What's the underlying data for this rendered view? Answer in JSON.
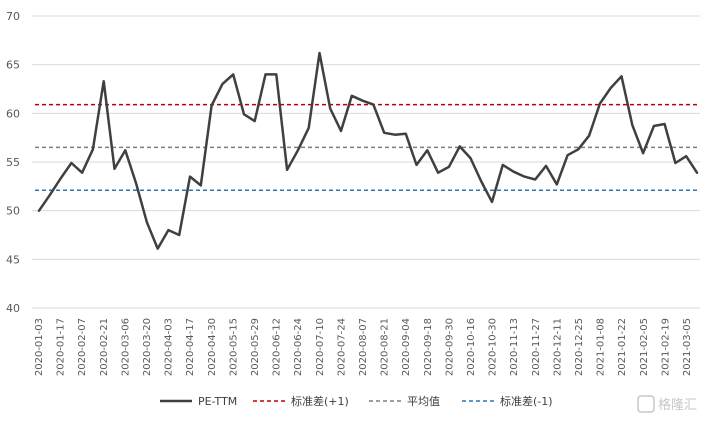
{
  "chart_data": {
    "type": "line",
    "title": "",
    "xlabel": "",
    "ylabel": "",
    "ylim": [
      40,
      70
    ],
    "yticks": [
      40,
      45,
      50,
      55,
      60,
      65,
      70
    ],
    "grid": "horizontal",
    "legend_position": "bottom",
    "x_tick_labels": [
      "2020-01-03",
      "2020-01-17",
      "2020-02-07",
      "2020-02-21",
      "2020-03-06",
      "2020-03-20",
      "2020-04-03",
      "2020-04-17",
      "2020-04-30",
      "2020-05-15",
      "2020-05-29",
      "2020-06-12",
      "2020-06-24",
      "2020-07-10",
      "2020-07-24",
      "2020-08-07",
      "2020-08-21",
      "2020-09-04",
      "2020-09-18",
      "2020-09-30",
      "2020-10-16",
      "2020-10-30",
      "2020-11-13",
      "2020-11-27",
      "2020-12-11",
      "2020-12-25",
      "2021-01-08",
      "2021-01-22",
      "2021-02-05",
      "2021-02-19",
      "2021-03-05"
    ],
    "series": [
      {
        "name": "PE-TTM",
        "style": "solid",
        "color": "#404040",
        "values": [
          50.0,
          51.6,
          53.3,
          54.9,
          53.9,
          56.3,
          63.3,
          54.3,
          56.2,
          52.8,
          48.8,
          46.1,
          48.0,
          47.5,
          53.5,
          52.6,
          60.8,
          63.0,
          64.0,
          59.9,
          59.2,
          64.0,
          64.0,
          54.2,
          56.2,
          58.5,
          66.2,
          60.5,
          58.2,
          61.8,
          61.3,
          60.9,
          58.0,
          57.8,
          57.9,
          54.7,
          56.2,
          53.9,
          54.5,
          56.6,
          55.4,
          53.0,
          50.9,
          54.7,
          54.0,
          53.5,
          53.2,
          54.6,
          52.7,
          55.7,
          56.3,
          57.7,
          61.0,
          62.6,
          63.8,
          58.8,
          55.9,
          58.7,
          58.9,
          54.9,
          55.6,
          53.9
        ]
      },
      {
        "name": "标准差(+1)",
        "style": "dashed",
        "color": "#c00000",
        "value": 60.9
      },
      {
        "name": "平均值",
        "style": "dashed",
        "color": "#7f7f7f",
        "value": 56.5
      },
      {
        "name": "标准差(-1)",
        "style": "dashed",
        "color": "#2e75b6",
        "value": 52.1
      }
    ]
  },
  "watermark": "格隆汇"
}
